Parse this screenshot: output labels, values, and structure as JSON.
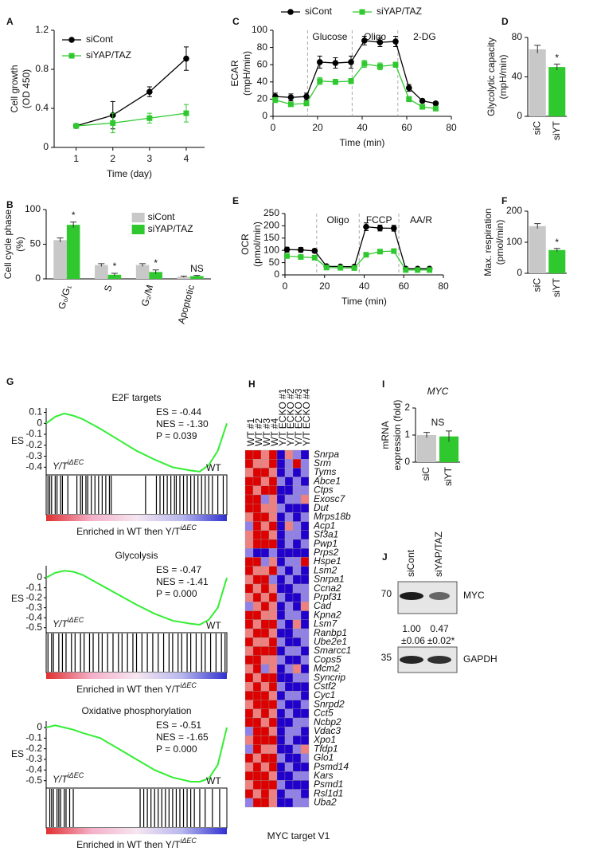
{
  "chart_data": [
    {
      "panel": "A",
      "type": "line",
      "xlabel": "Time (day)",
      "ylabel": [
        "Cell growth",
        "(OD 450)"
      ],
      "x": [
        1,
        2,
        3,
        4
      ],
      "xlim": [
        0.4,
        4.5
      ],
      "xticks": [
        1,
        2,
        3,
        4
      ],
      "ylim": [
        0,
        1.2
      ],
      "yticks": [
        0,
        0.4,
        0.8,
        1.2
      ],
      "legend": "upper left",
      "series": [
        {
          "name": "siCont",
          "color": "#000000",
          "marker": "circle",
          "values": [
            0.22,
            0.33,
            0.57,
            0.91
          ],
          "errors": [
            0.02,
            0.14,
            0.05,
            0.12
          ]
        },
        {
          "name": "siYAP/TAZ",
          "color": "#2fc92f",
          "marker": "square",
          "values": [
            0.22,
            0.25,
            0.3,
            0.35
          ],
          "errors": [
            0.02,
            0.1,
            0.05,
            0.09
          ]
        }
      ]
    },
    {
      "panel": "B",
      "type": "bar",
      "ylabel": [
        "Cell cycle phase",
        "(%)"
      ],
      "categories": [
        "G₀/G₁",
        "S",
        "G₂/M",
        "Apoptotic"
      ],
      "ylim": [
        0,
        100
      ],
      "yticks": [
        0,
        50,
        100
      ],
      "legend": "upper right",
      "annotations": [
        "*",
        "*",
        "*",
        "NS"
      ],
      "series": [
        {
          "name": "siCont",
          "color": "#c8c8c8",
          "values": [
            56,
            20,
            20,
            3
          ],
          "errors": [
            3,
            2,
            2,
            1
          ]
        },
        {
          "name": "siYAP/TAZ",
          "color": "#2fc92f",
          "values": [
            78,
            6,
            10,
            4
          ],
          "errors": [
            4,
            2,
            3,
            1
          ]
        }
      ]
    },
    {
      "panel": "C",
      "type": "line",
      "xlabel": "Time (min)",
      "ylabel": [
        "ECAR",
        "(mpH/min)"
      ],
      "x": [
        1,
        8,
        15,
        21,
        28,
        35,
        41,
        48,
        55,
        61,
        67,
        73
      ],
      "xlim": [
        0,
        80
      ],
      "xticks": [
        0,
        20,
        40,
        60,
        80
      ],
      "ylim": [
        0,
        100
      ],
      "yticks": [
        0,
        20,
        40,
        60,
        80,
        100
      ],
      "legend": "top",
      "phases": [
        {
          "label": "Glucose",
          "x": 15.5
        },
        {
          "label": "Oligo",
          "x": 35.5
        },
        {
          "label": "2-DG",
          "x": 56
        }
      ],
      "series": [
        {
          "name": "siCont",
          "color": "#000000",
          "marker": "circle",
          "values": [
            23,
            22,
            23,
            63,
            62,
            63,
            88,
            86,
            87,
            33,
            18,
            15
          ],
          "errors": [
            4,
            4,
            4,
            7,
            6,
            7,
            5,
            5,
            6,
            4,
            2,
            2
          ]
        },
        {
          "name": "siYAP/TAZ",
          "color": "#2fc92f",
          "marker": "square",
          "values": [
            19,
            14,
            15,
            41,
            40,
            41,
            61,
            58,
            60,
            20,
            11,
            9
          ],
          "errors": [
            3,
            2,
            2,
            4,
            3,
            3,
            4,
            4,
            3,
            3,
            1,
            1
          ]
        }
      ]
    },
    {
      "panel": "D",
      "type": "bar",
      "ylabel": [
        "Glycolytic capacity",
        "(mpH/min)"
      ],
      "categories": [
        "siC",
        "siYT"
      ],
      "values": [
        68,
        50
      ],
      "errors": [
        4,
        3
      ],
      "colors": [
        "#c8c8c8",
        "#2fc92f"
      ],
      "ylim": [
        0,
        80
      ],
      "yticks": [
        0,
        40,
        80
      ],
      "annotations": [
        null,
        "*"
      ]
    },
    {
      "panel": "E",
      "type": "line",
      "xlabel": "Time (min)",
      "ylabel": [
        "OCR",
        "(pmol/min)"
      ],
      "x": [
        1,
        8,
        15,
        21,
        28,
        35,
        41,
        48,
        55,
        61,
        67,
        73
      ],
      "xlim": [
        0,
        80
      ],
      "xticks": [
        0,
        20,
        40,
        60,
        80
      ],
      "ylim": [
        0,
        250
      ],
      "yticks": [
        0,
        50,
        100,
        150,
        200,
        250
      ],
      "phases": [
        {
          "label": "Oligo",
          "x": 16
        },
        {
          "label": "FCCP",
          "x": 37.5
        },
        {
          "label": "AA/R",
          "x": 57.5
        }
      ],
      "series": [
        {
          "name": "siCont",
          "color": "#000000",
          "marker": "circle",
          "values": [
            103,
            102,
            98,
            35,
            34,
            33,
            196,
            191,
            190,
            25,
            25,
            25
          ],
          "errors": [
            10,
            10,
            8,
            5,
            4,
            4,
            16,
            12,
            12,
            4,
            3,
            3
          ]
        },
        {
          "name": "siYAP/TAZ",
          "color": "#2fc92f",
          "marker": "square",
          "values": [
            77,
            73,
            70,
            30,
            29,
            28,
            82,
            95,
            97,
            20,
            20,
            20
          ],
          "errors": [
            6,
            5,
            4,
            3,
            3,
            3,
            6,
            7,
            7,
            3,
            3,
            3
          ]
        }
      ]
    },
    {
      "panel": "F",
      "type": "bar",
      "ylabel": [
        "Max. respiration",
        "(pmol/min)"
      ],
      "categories": [
        "siC",
        "siYT"
      ],
      "values": [
        152,
        75
      ],
      "errors": [
        8,
        5
      ],
      "colors": [
        "#c8c8c8",
        "#2fc92f"
      ],
      "ylim": [
        0,
        200
      ],
      "yticks": [
        0,
        100,
        200
      ],
      "annotations": [
        null,
        "*"
      ]
    },
    {
      "panel": "G",
      "type": "gsea",
      "title": "E2F targets",
      "stats": [
        "ES = -0.44",
        "NES = -1.30",
        "P = 0.039"
      ],
      "ylabel": "ES",
      "group": "Y/T",
      "group_sup": "iΔEC",
      "reference": "WT",
      "xlabel": "Enriched in WT then Y/T",
      "color": "#33ee33",
      "x": [
        0,
        0.05,
        0.1,
        0.15,
        0.2,
        0.3,
        0.4,
        0.5,
        0.6,
        0.7,
        0.8,
        0.85,
        0.9,
        0.95,
        1
      ],
      "xlim": [
        0,
        1
      ],
      "values": [
        0,
        0.06,
        0.09,
        0.07,
        0.04,
        -0.05,
        -0.15,
        -0.25,
        -0.33,
        -0.4,
        -0.43,
        -0.44,
        -0.38,
        -0.25,
        0
      ],
      "ylim": [
        -0.47,
        0.14
      ],
      "yticks": [
        0.1,
        0,
        -0.1,
        -0.2,
        -0.3,
        -0.4
      ],
      "hits": [
        0.01,
        0.02,
        0.03,
        0.05,
        0.06,
        0.08,
        0.09,
        0.12,
        0.17,
        0.19,
        0.2,
        0.22,
        0.23,
        0.25,
        0.27,
        0.29,
        0.31,
        0.33,
        0.35,
        0.36,
        0.55,
        0.61,
        0.63,
        0.65,
        0.67,
        0.69,
        0.71,
        0.72,
        0.74,
        0.76,
        0.78,
        0.8,
        0.82,
        0.84,
        0.86,
        0.88,
        0.9,
        0.92,
        0.95,
        0.98
      ]
    },
    {
      "type": "gsea",
      "title": "Glycolysis",
      "stats": [
        "ES = -0.47",
        "NES = -1.41",
        "P = 0.000"
      ],
      "ylabel": "ES",
      "group": "Y/T",
      "group_sup": "iΔEC",
      "reference": "WT",
      "xlabel": "Enriched in WT then Y/T",
      "color": "#33ee33",
      "x": [
        0,
        0.05,
        0.1,
        0.15,
        0.2,
        0.3,
        0.4,
        0.5,
        0.6,
        0.7,
        0.8,
        0.85,
        0.9,
        0.95,
        1
      ],
      "xlim": [
        0,
        1
      ],
      "values": [
        0,
        0.05,
        0.07,
        0.06,
        0.03,
        -0.07,
        -0.17,
        -0.27,
        -0.36,
        -0.43,
        -0.46,
        -0.47,
        -0.42,
        -0.3,
        0
      ],
      "ylim": [
        -0.55,
        0.12
      ],
      "yticks": [
        0,
        -0.1,
        -0.2,
        -0.3,
        -0.4,
        -0.5
      ],
      "hits": [
        0.01,
        0.03,
        0.04,
        0.07,
        0.09,
        0.11,
        0.14,
        0.16,
        0.19,
        0.21,
        0.24,
        0.26,
        0.29,
        0.31,
        0.34,
        0.37,
        0.4,
        0.42,
        0.45,
        0.48,
        0.5,
        0.53,
        0.56,
        0.59,
        0.62,
        0.65,
        0.68,
        0.7,
        0.73,
        0.75,
        0.78,
        0.8,
        0.83,
        0.86,
        0.88,
        0.91,
        0.94,
        0.97,
        0.99
      ]
    },
    {
      "type": "gsea",
      "title": "Oxidative phosphorylation",
      "stats": [
        "ES = -0.51",
        "NES = -1.65",
        "P = 0.000"
      ],
      "ylabel": "ES",
      "group": "Y/T",
      "group_sup": "iΔEC",
      "reference": "WT",
      "xlabel": "Enriched in WT then Y/T",
      "color": "#33ee33",
      "x": [
        0,
        0.05,
        0.1,
        0.15,
        0.2,
        0.3,
        0.4,
        0.5,
        0.6,
        0.7,
        0.8,
        0.85,
        0.9,
        0.95,
        1
      ],
      "xlim": [
        0,
        1
      ],
      "values": [
        0,
        0.02,
        0,
        -0.02,
        -0.05,
        -0.1,
        -0.2,
        -0.3,
        -0.4,
        -0.47,
        -0.51,
        -0.51,
        -0.48,
        -0.35,
        0
      ],
      "ylim": [
        -0.57,
        0.06
      ],
      "yticks": [
        0,
        -0.1,
        -0.2,
        -0.3,
        -0.4,
        -0.5
      ],
      "hits": [
        0.02,
        0.03,
        0.04,
        0.06,
        0.07,
        0.08,
        0.1,
        0.11,
        0.13,
        0.15,
        0.52,
        0.54,
        0.56,
        0.58,
        0.6,
        0.62,
        0.64,
        0.66,
        0.68,
        0.7,
        0.72,
        0.74,
        0.76,
        0.78,
        0.8,
        0.82,
        0.85,
        0.88,
        0.92,
        0.96
      ]
    },
    {
      "panel": "H",
      "type": "heatmap",
      "xlabel": "MYC target V1",
      "columns": [
        "WT #1",
        "WT #2",
        "WT #3",
        "WT #4",
        "Y/T ECKO #1",
        "Y/T ECKO #2",
        "Y/T ECKO #3",
        "Y/T ECKO #4"
      ],
      "rows": [
        "Snrpa",
        "Srm",
        "Tyms",
        "Abce1",
        "Ctps",
        "Exosc7",
        "Dut",
        "Mrps18b",
        "Acp1",
        "Sf3a1",
        "Pwp1",
        "Prps2",
        "Hspe1",
        "Lsm2",
        "Snrpa1",
        "Ccna2",
        "Prpf31",
        "Cad",
        "Kpna2",
        "Lsm7",
        "Ranbp1",
        "Ube2e1",
        "Smarcc1",
        "Cops5",
        "Mcm2",
        "Syncrip",
        "Cstf2",
        "Cyc1",
        "Snrpd2",
        "Cct5",
        "Ncbp2",
        "Vdac3",
        "Xpo1",
        "Tfdp1",
        "Glo1",
        "Psmd14",
        "Kars",
        "Psmd1",
        "Rsl1d1",
        "Uba2"
      ],
      "vlim": [
        -2,
        2
      ],
      "colors": [
        "#2200cc",
        "#ffffff",
        "#dd0000"
      ],
      "values": [
        [
          2,
          2,
          1,
          2,
          -2,
          1,
          -1,
          -2
        ],
        [
          2,
          1,
          1,
          2,
          -2,
          -1,
          2,
          -1
        ],
        [
          1,
          2,
          2,
          1,
          -2,
          -1,
          -2,
          -1
        ],
        [
          2,
          2,
          1,
          2,
          -1,
          -2,
          -1,
          -2
        ],
        [
          2,
          1,
          2,
          2,
          -2,
          -2,
          -1,
          -1
        ],
        [
          2,
          2,
          -1,
          1,
          -2,
          -1,
          -1,
          1
        ],
        [
          2,
          2,
          1,
          1,
          -1,
          -2,
          -2,
          -2
        ],
        [
          1,
          2,
          2,
          1,
          -2,
          -1,
          -2,
          -1
        ],
        [
          -1,
          2,
          1,
          2,
          -2,
          1,
          -1,
          -2
        ],
        [
          1,
          2,
          2,
          1,
          -2,
          -1,
          -1,
          -2
        ],
        [
          1,
          2,
          2,
          2,
          -2,
          -1,
          -2,
          -1
        ],
        [
          -1,
          -2,
          -2,
          -1,
          -2,
          -2,
          -2,
          -2
        ],
        [
          2,
          2,
          -1,
          1,
          -2,
          -1,
          -1,
          2
        ],
        [
          2,
          1,
          1,
          2,
          -1,
          -2,
          -1,
          -2
        ],
        [
          1,
          2,
          2,
          -1,
          -2,
          -1,
          -2,
          -2
        ],
        [
          2,
          1,
          2,
          1,
          -2,
          -2,
          -1,
          -1
        ],
        [
          1,
          2,
          1,
          2,
          -1,
          -2,
          -2,
          -1
        ],
        [
          -1,
          1,
          2,
          1,
          -2,
          -1,
          -2,
          1
        ],
        [
          2,
          2,
          1,
          1,
          -2,
          -1,
          -1,
          -2
        ],
        [
          2,
          1,
          2,
          2,
          -1,
          -2,
          1,
          -2
        ],
        [
          1,
          2,
          2,
          1,
          -2,
          -2,
          -1,
          -1
        ],
        [
          2,
          1,
          1,
          2,
          -1,
          -2,
          -2,
          -1
        ],
        [
          1,
          2,
          2,
          2,
          -2,
          -1,
          -1,
          -2
        ],
        [
          2,
          2,
          1,
          1,
          -1,
          -2,
          -2,
          -1
        ],
        [
          1,
          2,
          -1,
          1,
          -2,
          -1,
          1,
          -2
        ],
        [
          2,
          1,
          2,
          2,
          -2,
          -2,
          -1,
          -1
        ],
        [
          1,
          2,
          1,
          2,
          -1,
          -2,
          -2,
          -2
        ],
        [
          2,
          2,
          2,
          1,
          -2,
          -1,
          -1,
          -2
        ],
        [
          1,
          2,
          2,
          2,
          -1,
          -2,
          -2,
          -1
        ],
        [
          2,
          1,
          2,
          1,
          -2,
          -1,
          -2,
          -2
        ],
        [
          2,
          2,
          1,
          2,
          -2,
          -2,
          -1,
          -1
        ],
        [
          -1,
          2,
          2,
          1,
          -2,
          -1,
          -1,
          -2
        ],
        [
          1,
          2,
          2,
          2,
          -2,
          -1,
          -2,
          -2
        ],
        [
          -1,
          2,
          1,
          1,
          -2,
          -2,
          -1,
          1
        ],
        [
          2,
          1,
          2,
          2,
          -1,
          -2,
          -2,
          -1
        ],
        [
          1,
          2,
          1,
          2,
          -2,
          -1,
          -2,
          -2
        ],
        [
          2,
          2,
          2,
          1,
          -2,
          -2,
          -1,
          -1
        ],
        [
          1,
          2,
          2,
          2,
          -1,
          -2,
          -2,
          -2
        ],
        [
          2,
          1,
          2,
          1,
          -2,
          -1,
          -1,
          -2
        ],
        [
          -1,
          2,
          2,
          1,
          -2,
          -2,
          -1,
          -1
        ]
      ]
    },
    {
      "panel": "I",
      "type": "bar",
      "title": "MYC",
      "ylabel": [
        "mRNA",
        "expression (fold)"
      ],
      "categories": [
        "siC",
        "siYT"
      ],
      "values": [
        1,
        0.95
      ],
      "errors": [
        0.1,
        0.2
      ],
      "colors": [
        "#c8c8c8",
        "#2fc92f"
      ],
      "ylim": [
        0,
        2
      ],
      "yticks": [
        0,
        1,
        2
      ],
      "annotation": "NS"
    },
    {
      "panel": "J",
      "type": "blot",
      "lanes": [
        "siCont",
        "siYAP/TAZ"
      ],
      "bands": [
        {
          "marker": 70,
          "label": "MYC",
          "quant": [
            "1.00",
            "0.47"
          ],
          "quant_err": [
            "±0.06",
            "±0.02*"
          ]
        },
        {
          "marker": 35,
          "label": "GAPDH"
        }
      ]
    }
  ]
}
